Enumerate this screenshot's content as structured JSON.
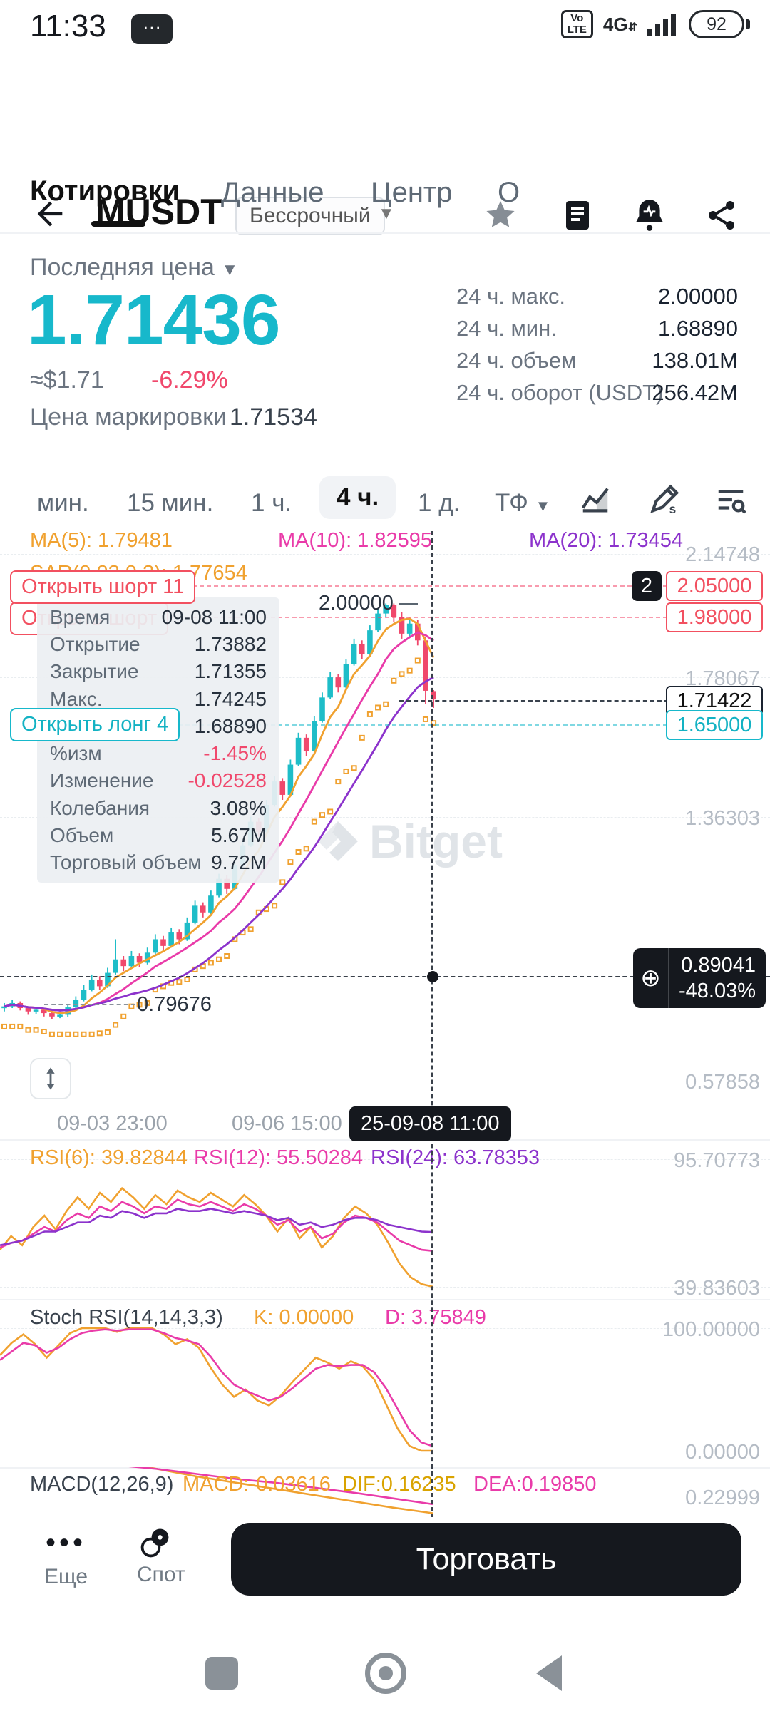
{
  "theme": {
    "accent": "#17b8cb",
    "up": "#1ebdc8",
    "down": "#f0486c",
    "ma5": "#f0a12f",
    "ma10": "#e93ba9",
    "ma20": "#8c33cc",
    "badge_dark": "#15181e",
    "gray_text": "#6b7480"
  },
  "status": {
    "time": "11:33",
    "volte": "VoLTE",
    "network": "4G",
    "battery": "92"
  },
  "header": {
    "title": "MUSDT",
    "contract_type": "Бессрочный"
  },
  "tabs": {
    "items": [
      "Котировки",
      "Данные",
      "Центр",
      "О"
    ]
  },
  "price": {
    "label": "Последняя цена",
    "value": "1.71436",
    "usd": "≈$1.71",
    "change": "-6.29%",
    "mark_label": "Цена маркировки",
    "mark_value": "1.71534"
  },
  "stats": {
    "rows": [
      {
        "label": "24 ч. макс.",
        "value": "2.00000"
      },
      {
        "label": "24 ч. мин.",
        "value": "1.68890"
      },
      {
        "label": "24 ч. объем",
        "value": "138.01M"
      },
      {
        "label": "24 ч. оборот (USDT)",
        "value": "256.42M"
      }
    ]
  },
  "timeframes": {
    "items": [
      "мин.",
      "15 мин.",
      "1 ч.",
      "4 ч.",
      "1 д."
    ],
    "selected": "4 ч.",
    "tf": "ТФ"
  },
  "indicators": {
    "ma5": "MA(5): 1.79481",
    "ma10": "MA(10): 1.82595",
    "ma20": "MA(20): 1.73454",
    "sar": "SAR(0.02,0.2): 1.77654",
    "rsi6": "RSI(6): 39.82844",
    "rsi12": "RSI(12): 55.50284",
    "rsi24": "RSI(24): 63.78353",
    "stoch_title": "Stoch RSI(14,14,3,3)",
    "stoch_k": "K: 0.00000",
    "stoch_d": "D: 3.75849",
    "macd_title": "MACD(12,26,9)",
    "macd": "MACD:-0.03616",
    "dif": "DIF:0.16235",
    "dea": "DEA:0.19850"
  },
  "overlays": {
    "short_label_1": "Открыть шорт 11",
    "short_label_2": "Открыть шорт",
    "long_label": "Открыть лонг 4",
    "alert_count": "2",
    "upper_alert": "2.05000",
    "lower_alert": "1.98000",
    "last_price_axis": "1.71422",
    "long_line_price": "1.65000",
    "high_label": "2.00000",
    "low_label": "0.79676"
  },
  "tooltip": {
    "rows": [
      {
        "label": "Время",
        "value": "09-08 11:00"
      },
      {
        "label": "Открытие",
        "value": "1.73882"
      },
      {
        "label": "Закрытие",
        "value": "1.71355"
      },
      {
        "label": "Макс.",
        "value": "1.74245"
      },
      {
        "label": "Мин.",
        "value": "1.68890"
      },
      {
        "label": "%изм",
        "value": "-1.45%"
      },
      {
        "label": "Изменение",
        "value": "-0.02528"
      },
      {
        "label": "Колебания",
        "value": "3.08%"
      },
      {
        "label": "Объем",
        "value": "5.67M"
      },
      {
        "label": "Торговый объем",
        "value": "9.72M"
      }
    ]
  },
  "crosshair": {
    "price": "0.89041",
    "change": "-48.03%",
    "time": "25-09-08 11:00",
    "plus": "⊕"
  },
  "axis": {
    "main_y": [
      "2.14748",
      "1.78067",
      "1.36303",
      "0.57858"
    ],
    "x": [
      "09-03 23:00",
      "09-06 15:00"
    ],
    "rsi_y": [
      "95.70773",
      "39.83603"
    ],
    "stoch_y": [
      "100.00000",
      "0.00000"
    ],
    "macd_y": [
      "0.22999"
    ]
  },
  "watermark": "Bitget",
  "bottom": {
    "more_icon": "•••",
    "more": "Еще",
    "spot": "Спот",
    "trade": "Торговать"
  },
  "chart_data": {
    "type": "candlestick",
    "symbol": "MUSDT",
    "interval": "4h",
    "y_range": [
      0.57858,
      2.14748
    ],
    "y_axis_ticks": [
      2.14748,
      1.78067,
      1.36303,
      0.57858
    ],
    "x_axis_labels": [
      "09-03 23:00",
      "09-06 15:00",
      "25-09-08 11:00"
    ],
    "last_price": 1.71436,
    "mark_price": 1.71534,
    "high_24h": 2.0,
    "low_24h": 1.6889,
    "candles": [
      [
        0.795,
        0.8,
        0.785,
        0.81
      ],
      [
        0.8,
        0.81,
        0.795,
        0.82
      ],
      [
        0.81,
        0.795,
        0.788,
        0.815
      ],
      [
        0.795,
        0.785,
        0.775,
        0.8
      ],
      [
        0.785,
        0.79,
        0.778,
        0.798
      ],
      [
        0.79,
        0.78,
        0.77,
        0.795
      ],
      [
        0.78,
        0.77,
        0.762,
        0.788
      ],
      [
        0.77,
        0.775,
        0.765,
        0.785
      ],
      [
        0.775,
        0.797,
        0.768,
        0.805
      ],
      [
        0.797,
        0.82,
        0.79,
        0.83
      ],
      [
        0.82,
        0.85,
        0.815,
        0.865
      ],
      [
        0.85,
        0.88,
        0.845,
        0.895
      ],
      [
        0.88,
        0.86,
        0.85,
        0.89
      ],
      [
        0.86,
        0.9,
        0.855,
        0.915
      ],
      [
        0.9,
        0.94,
        0.895,
        1.0
      ],
      [
        0.94,
        0.92,
        0.905,
        0.95
      ],
      [
        0.92,
        0.95,
        0.915,
        0.965
      ],
      [
        0.95,
        0.93,
        0.918,
        0.958
      ],
      [
        0.93,
        0.96,
        0.925,
        0.975
      ],
      [
        0.96,
        1.0,
        0.955,
        1.015
      ],
      [
        1.0,
        0.98,
        0.965,
        1.01
      ],
      [
        0.98,
        1.02,
        0.975,
        1.035
      ],
      [
        1.02,
        1.0,
        0.985,
        1.03
      ],
      [
        1.0,
        1.05,
        0.995,
        1.065
      ],
      [
        1.05,
        1.1,
        1.045,
        1.115
      ],
      [
        1.1,
        1.08,
        1.065,
        1.11
      ],
      [
        1.08,
        1.13,
        1.075,
        1.145
      ],
      [
        1.13,
        1.18,
        1.125,
        1.195
      ],
      [
        1.18,
        1.15,
        1.135,
        1.19
      ],
      [
        1.15,
        1.22,
        1.145,
        1.235
      ],
      [
        1.22,
        1.28,
        1.215,
        1.295
      ],
      [
        1.28,
        1.35,
        1.275,
        1.365
      ],
      [
        1.35,
        1.32,
        1.305,
        1.36
      ],
      [
        1.32,
        1.4,
        1.315,
        1.415
      ],
      [
        1.4,
        1.47,
        1.395,
        1.485
      ],
      [
        1.47,
        1.43,
        1.415,
        1.48
      ],
      [
        1.43,
        1.52,
        1.425,
        1.535
      ],
      [
        1.52,
        1.6,
        1.515,
        1.615
      ],
      [
        1.6,
        1.56,
        1.545,
        1.61
      ],
      [
        1.56,
        1.65,
        1.555,
        1.665
      ],
      [
        1.65,
        1.72,
        1.645,
        1.735
      ],
      [
        1.72,
        1.78,
        1.715,
        1.795
      ],
      [
        1.78,
        1.75,
        1.735,
        1.79
      ],
      [
        1.75,
        1.82,
        1.745,
        1.835
      ],
      [
        1.82,
        1.88,
        1.815,
        1.895
      ],
      [
        1.88,
        1.85,
        1.835,
        1.89
      ],
      [
        1.85,
        1.92,
        1.845,
        1.935
      ],
      [
        1.92,
        1.97,
        1.915,
        1.985
      ],
      [
        1.97,
        1.995,
        1.96,
        2.0
      ],
      [
        1.995,
        1.96,
        1.945,
        2.0
      ],
      [
        1.96,
        1.91,
        1.895,
        1.975
      ],
      [
        1.91,
        1.94,
        1.9,
        1.955
      ],
      [
        1.94,
        1.89,
        1.875,
        1.95
      ],
      [
        1.89,
        1.74,
        1.7,
        1.9
      ],
      [
        1.739,
        1.714,
        1.689,
        1.742
      ]
    ],
    "ma_periods": [
      5,
      10,
      20
    ],
    "ma_last_values": {
      "ma5": 1.79481,
      "ma10": 1.82595,
      "ma20": 1.73454,
      "sar": 1.77654
    },
    "alert_lines": [
      2.05,
      1.98
    ],
    "long_line": 1.65,
    "crosshair_point": {
      "price": 0.89041,
      "change_pct": -48.03
    },
    "rsi": {
      "range": [
        39.83603,
        95.70773
      ],
      "series": [
        {
          "name": "RSI(6)",
          "last": 39.82844,
          "values": [
            56,
            62,
            58,
            66,
            71,
            65,
            73,
            79,
            74,
            81,
            77,
            83,
            79,
            74,
            80,
            76,
            82,
            79,
            77,
            81,
            78,
            75,
            80,
            76,
            71,
            64,
            70,
            61,
            66,
            57,
            62,
            70,
            75,
            72,
            67,
            59,
            50,
            44,
            41,
            39.83
          ]
        },
        {
          "name": "RSI(12)",
          "last": 55.50284,
          "values": [
            57,
            59,
            60,
            63,
            66,
            64,
            69,
            72,
            70,
            75,
            73,
            77,
            75,
            72,
            75,
            74,
            78,
            76,
            75,
            77,
            75,
            73,
            76,
            74,
            71,
            67,
            69,
            64,
            66,
            61,
            63,
            68,
            71,
            70,
            68,
            64,
            60,
            58,
            56,
            55.5
          ]
        },
        {
          "name": "RSI(24)",
          "last": 63.78353,
          "values": [
            58,
            59,
            60,
            62,
            64,
            64,
            66,
            68,
            68,
            71,
            70,
            73,
            72,
            70,
            72,
            72,
            74,
            73,
            73,
            74,
            73,
            72,
            73,
            72,
            71,
            69,
            70,
            67,
            68,
            66,
            67,
            69,
            70,
            70,
            69,
            67,
            66,
            65,
            64,
            63.78
          ]
        }
      ]
    },
    "stoch": {
      "range": [
        0,
        100
      ],
      "k_last": 0.0,
      "d_last": 3.75849,
      "k": [
        78,
        88,
        95,
        87,
        76,
        86,
        96,
        100,
        100,
        100,
        97,
        100,
        100,
        100,
        95,
        87,
        91,
        84,
        68,
        54,
        44,
        50,
        41,
        37,
        45,
        56,
        66,
        76,
        72,
        67,
        73,
        69,
        58,
        38,
        18,
        4,
        0,
        0
      ],
      "d": [
        74,
        81,
        88,
        86,
        80,
        84,
        91,
        96,
        98,
        99,
        98,
        99,
        99,
        99,
        96,
        92,
        90,
        87,
        77,
        64,
        54,
        49,
        45,
        41,
        44,
        51,
        59,
        67,
        70,
        69,
        70,
        70,
        64,
        51,
        34,
        17,
        7,
        3.76
      ]
    },
    "macd": {
      "macd_last": -0.03616,
      "dif_last": 0.16235,
      "dea_last": 0.1985,
      "axis_value": 0.22999,
      "dif": [
        0.46,
        0.43,
        0.4,
        0.37,
        0.34,
        0.31,
        0.285,
        0.26,
        0.235,
        0.21,
        0.185,
        0.163
      ],
      "dea": [
        0.4,
        0.385,
        0.37,
        0.355,
        0.34,
        0.32,
        0.3,
        0.285,
        0.265,
        0.245,
        0.222,
        0.199
      ]
    }
  }
}
